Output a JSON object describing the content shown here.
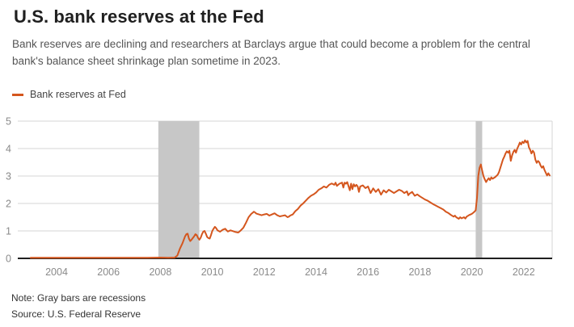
{
  "header": {
    "title": "U.S. bank reserves at the Fed",
    "subtitle": "Bank reserves are declining and researchers at Barclays argue that could become a problem for the central bank's balance sheet shrinkage plan sometime in 2023."
  },
  "legend": {
    "label": "Bank reserves at Fed",
    "swatch_color": "#d4561e"
  },
  "footer": {
    "note": "Note: Gray bars are recessions",
    "source": "Source: U.S. Federal Reserve"
  },
  "chart_data": {
    "type": "line",
    "title": "U.S. bank reserves at the Fed",
    "xlabel": "",
    "ylabel": "",
    "ylim": [
      0,
      5
    ],
    "yticks": [
      0,
      1,
      2,
      3,
      4,
      5
    ],
    "xticks": [
      2004,
      2006,
      2008,
      2010,
      2012,
      2014,
      2016,
      2018,
      2020,
      2022
    ],
    "xlim": [
      2002.5,
      2023.1
    ],
    "grid": true,
    "legend_position": "top-left",
    "line_color": "#d4561e",
    "band_color": "#c7c7c7",
    "grid_color": "#d6d6d6",
    "axis_color": "#1f1f1f",
    "tick_label_color": "#8a8a8a",
    "recession_bands": [
      {
        "from": 2007.92,
        "to": 2009.5
      },
      {
        "from": 2020.15,
        "to": 2020.4
      }
    ],
    "series": [
      {
        "name": "Bank reserves at Fed",
        "points": [
          [
            2003.0,
            0.02
          ],
          [
            2003.5,
            0.02
          ],
          [
            2004.0,
            0.02
          ],
          [
            2004.5,
            0.02
          ],
          [
            2005.0,
            0.02
          ],
          [
            2005.5,
            0.02
          ],
          [
            2006.0,
            0.02
          ],
          [
            2006.5,
            0.02
          ],
          [
            2007.0,
            0.02
          ],
          [
            2007.5,
            0.02
          ],
          [
            2008.0,
            0.03
          ],
          [
            2008.3,
            0.02
          ],
          [
            2008.55,
            0.03
          ],
          [
            2008.65,
            0.1
          ],
          [
            2008.75,
            0.35
          ],
          [
            2008.85,
            0.55
          ],
          [
            2008.95,
            0.8
          ],
          [
            2009.0,
            0.88
          ],
          [
            2009.05,
            0.9
          ],
          [
            2009.1,
            0.72
          ],
          [
            2009.15,
            0.63
          ],
          [
            2009.2,
            0.68
          ],
          [
            2009.3,
            0.8
          ],
          [
            2009.35,
            0.88
          ],
          [
            2009.4,
            0.85
          ],
          [
            2009.45,
            0.75
          ],
          [
            2009.5,
            0.68
          ],
          [
            2009.55,
            0.75
          ],
          [
            2009.6,
            0.88
          ],
          [
            2009.65,
            0.97
          ],
          [
            2009.7,
            1.0
          ],
          [
            2009.75,
            0.9
          ],
          [
            2009.8,
            0.78
          ],
          [
            2009.85,
            0.74
          ],
          [
            2009.9,
            0.72
          ],
          [
            2009.95,
            0.85
          ],
          [
            2010.0,
            1.0
          ],
          [
            2010.05,
            1.08
          ],
          [
            2010.1,
            1.15
          ],
          [
            2010.15,
            1.1
          ],
          [
            2010.2,
            1.02
          ],
          [
            2010.3,
            0.97
          ],
          [
            2010.4,
            1.04
          ],
          [
            2010.5,
            1.08
          ],
          [
            2010.55,
            1.02
          ],
          [
            2010.6,
            0.98
          ],
          [
            2010.7,
            1.02
          ],
          [
            2010.8,
            0.99
          ],
          [
            2010.9,
            0.96
          ],
          [
            2011.0,
            0.94
          ],
          [
            2011.05,
            0.98
          ],
          [
            2011.1,
            1.02
          ],
          [
            2011.2,
            1.12
          ],
          [
            2011.3,
            1.3
          ],
          [
            2011.4,
            1.5
          ],
          [
            2011.5,
            1.62
          ],
          [
            2011.55,
            1.66
          ],
          [
            2011.6,
            1.7
          ],
          [
            2011.65,
            1.67
          ],
          [
            2011.7,
            1.63
          ],
          [
            2011.8,
            1.6
          ],
          [
            2011.9,
            1.57
          ],
          [
            2012.0,
            1.6
          ],
          [
            2012.1,
            1.62
          ],
          [
            2012.2,
            1.56
          ],
          [
            2012.3,
            1.6
          ],
          [
            2012.4,
            1.64
          ],
          [
            2012.5,
            1.57
          ],
          [
            2012.6,
            1.53
          ],
          [
            2012.7,
            1.55
          ],
          [
            2012.8,
            1.57
          ],
          [
            2012.9,
            1.5
          ],
          [
            2012.95,
            1.52
          ],
          [
            2013.0,
            1.56
          ],
          [
            2013.1,
            1.6
          ],
          [
            2013.2,
            1.72
          ],
          [
            2013.3,
            1.8
          ],
          [
            2013.4,
            1.92
          ],
          [
            2013.5,
            2.0
          ],
          [
            2013.6,
            2.1
          ],
          [
            2013.7,
            2.2
          ],
          [
            2013.8,
            2.28
          ],
          [
            2013.9,
            2.33
          ],
          [
            2014.0,
            2.4
          ],
          [
            2014.1,
            2.5
          ],
          [
            2014.2,
            2.55
          ],
          [
            2014.3,
            2.62
          ],
          [
            2014.4,
            2.58
          ],
          [
            2014.5,
            2.68
          ],
          [
            2014.6,
            2.73
          ],
          [
            2014.7,
            2.68
          ],
          [
            2014.75,
            2.76
          ],
          [
            2014.8,
            2.64
          ],
          [
            2014.9,
            2.72
          ],
          [
            2015.0,
            2.76
          ],
          [
            2015.05,
            2.58
          ],
          [
            2015.1,
            2.76
          ],
          [
            2015.15,
            2.72
          ],
          [
            2015.2,
            2.78
          ],
          [
            2015.3,
            2.48
          ],
          [
            2015.35,
            2.72
          ],
          [
            2015.4,
            2.52
          ],
          [
            2015.45,
            2.7
          ],
          [
            2015.5,
            2.62
          ],
          [
            2015.55,
            2.68
          ],
          [
            2015.6,
            2.62
          ],
          [
            2015.65,
            2.42
          ],
          [
            2015.7,
            2.62
          ],
          [
            2015.8,
            2.66
          ],
          [
            2015.9,
            2.56
          ],
          [
            2016.0,
            2.62
          ],
          [
            2016.05,
            2.5
          ],
          [
            2016.1,
            2.38
          ],
          [
            2016.2,
            2.55
          ],
          [
            2016.3,
            2.42
          ],
          [
            2016.4,
            2.52
          ],
          [
            2016.5,
            2.32
          ],
          [
            2016.6,
            2.48
          ],
          [
            2016.7,
            2.4
          ],
          [
            2016.8,
            2.5
          ],
          [
            2016.9,
            2.44
          ],
          [
            2017.0,
            2.38
          ],
          [
            2017.1,
            2.44
          ],
          [
            2017.2,
            2.5
          ],
          [
            2017.3,
            2.46
          ],
          [
            2017.4,
            2.38
          ],
          [
            2017.5,
            2.44
          ],
          [
            2017.55,
            2.3
          ],
          [
            2017.6,
            2.36
          ],
          [
            2017.7,
            2.42
          ],
          [
            2017.8,
            2.28
          ],
          [
            2017.9,
            2.33
          ],
          [
            2018.0,
            2.26
          ],
          [
            2018.1,
            2.2
          ],
          [
            2018.2,
            2.14
          ],
          [
            2018.3,
            2.1
          ],
          [
            2018.4,
            2.04
          ],
          [
            2018.5,
            1.98
          ],
          [
            2018.6,
            1.93
          ],
          [
            2018.7,
            1.88
          ],
          [
            2018.8,
            1.83
          ],
          [
            2018.9,
            1.78
          ],
          [
            2019.0,
            1.7
          ],
          [
            2019.1,
            1.65
          ],
          [
            2019.2,
            1.58
          ],
          [
            2019.3,
            1.52
          ],
          [
            2019.35,
            1.56
          ],
          [
            2019.4,
            1.5
          ],
          [
            2019.5,
            1.44
          ],
          [
            2019.55,
            1.5
          ],
          [
            2019.6,
            1.46
          ],
          [
            2019.7,
            1.5
          ],
          [
            2019.75,
            1.45
          ],
          [
            2019.8,
            1.52
          ],
          [
            2019.9,
            1.58
          ],
          [
            2020.0,
            1.62
          ],
          [
            2020.05,
            1.66
          ],
          [
            2020.1,
            1.7
          ],
          [
            2020.15,
            1.75
          ],
          [
            2020.2,
            2.2
          ],
          [
            2020.25,
            3.0
          ],
          [
            2020.3,
            3.3
          ],
          [
            2020.35,
            3.42
          ],
          [
            2020.4,
            3.2
          ],
          [
            2020.45,
            3.0
          ],
          [
            2020.5,
            2.88
          ],
          [
            2020.55,
            2.78
          ],
          [
            2020.6,
            2.86
          ],
          [
            2020.65,
            2.92
          ],
          [
            2020.7,
            2.85
          ],
          [
            2020.75,
            2.95
          ],
          [
            2020.8,
            2.9
          ],
          [
            2020.9,
            2.96
          ],
          [
            2021.0,
            3.05
          ],
          [
            2021.05,
            3.15
          ],
          [
            2021.1,
            3.3
          ],
          [
            2021.15,
            3.45
          ],
          [
            2021.2,
            3.6
          ],
          [
            2021.25,
            3.7
          ],
          [
            2021.3,
            3.82
          ],
          [
            2021.35,
            3.9
          ],
          [
            2021.4,
            3.85
          ],
          [
            2021.45,
            3.92
          ],
          [
            2021.5,
            3.55
          ],
          [
            2021.55,
            3.75
          ],
          [
            2021.6,
            3.88
          ],
          [
            2021.65,
            3.95
          ],
          [
            2021.7,
            3.85
          ],
          [
            2021.75,
            4.0
          ],
          [
            2021.8,
            4.1
          ],
          [
            2021.85,
            4.22
          ],
          [
            2021.9,
            4.15
          ],
          [
            2021.95,
            4.25
          ],
          [
            2022.0,
            4.2
          ],
          [
            2022.05,
            4.3
          ],
          [
            2022.1,
            4.22
          ],
          [
            2022.15,
            4.28
          ],
          [
            2022.2,
            4.05
          ],
          [
            2022.25,
            3.95
          ],
          [
            2022.3,
            3.82
          ],
          [
            2022.35,
            3.92
          ],
          [
            2022.4,
            3.85
          ],
          [
            2022.45,
            3.6
          ],
          [
            2022.5,
            3.48
          ],
          [
            2022.55,
            3.55
          ],
          [
            2022.6,
            3.5
          ],
          [
            2022.65,
            3.38
          ],
          [
            2022.7,
            3.3
          ],
          [
            2022.75,
            3.36
          ],
          [
            2022.8,
            3.22
          ],
          [
            2022.85,
            3.12
          ],
          [
            2022.9,
            3.02
          ],
          [
            2022.95,
            3.1
          ],
          [
            2023.0,
            3.02
          ]
        ]
      }
    ]
  }
}
